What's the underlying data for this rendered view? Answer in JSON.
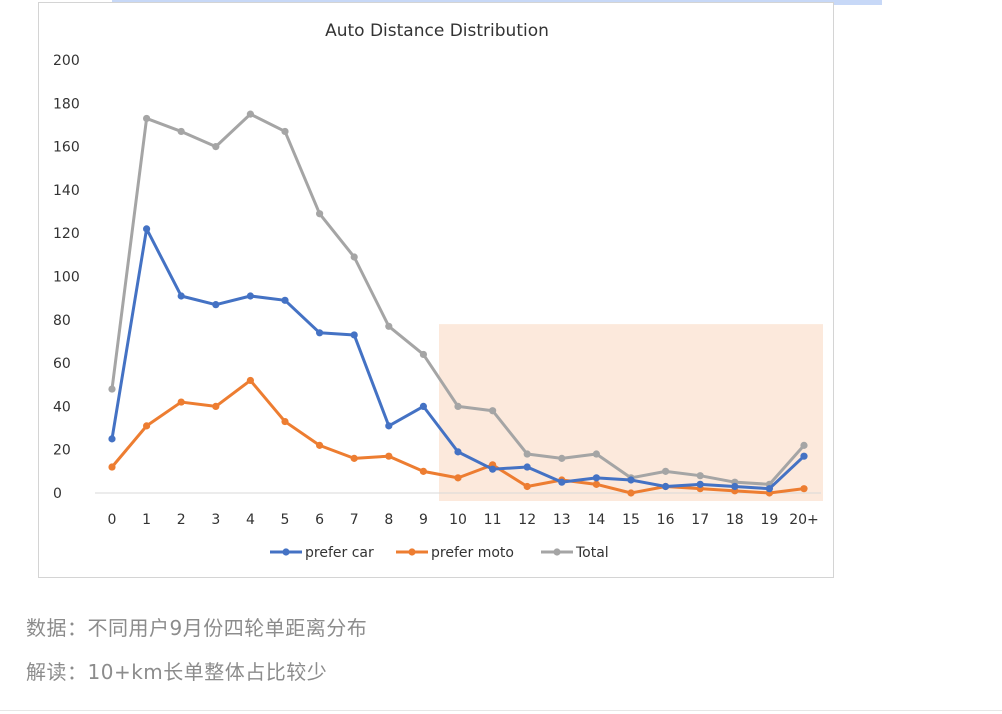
{
  "chart_data": {
    "type": "line",
    "title": "Auto Distance Distribution",
    "categories": [
      "0",
      "1",
      "2",
      "3",
      "4",
      "5",
      "6",
      "7",
      "8",
      "9",
      "10",
      "11",
      "12",
      "13",
      "14",
      "15",
      "16",
      "17",
      "18",
      "19",
      "20+"
    ],
    "yticks": [
      0,
      20,
      40,
      60,
      80,
      100,
      120,
      140,
      160,
      180,
      200
    ],
    "ylim": [
      0,
      200
    ],
    "legend_position": "bottom",
    "grid": false,
    "highlight_region": {
      "from_category": "10",
      "to_category": "20+",
      "y_max": 78,
      "color": "#fbe1d0"
    },
    "series": [
      {
        "name": "prefer car",
        "color": "#4472c4",
        "values": [
          25,
          122,
          91,
          87,
          91,
          89,
          74,
          73,
          31,
          40,
          19,
          11,
          12,
          5,
          7,
          6,
          3,
          4,
          3,
          2,
          17
        ]
      },
      {
        "name": "prefer moto",
        "color": "#ed7d31",
        "values": [
          12,
          31,
          42,
          40,
          52,
          33,
          22,
          16,
          17,
          10,
          7,
          13,
          3,
          6,
          4,
          0,
          3,
          2,
          1,
          0,
          2
        ]
      },
      {
        "name": "Total",
        "color": "#a5a5a5",
        "values": [
          48,
          173,
          167,
          160,
          175,
          167,
          129,
          109,
          77,
          64,
          40,
          38,
          18,
          16,
          18,
          7,
          10,
          8,
          5,
          4,
          22
        ]
      }
    ]
  },
  "captions": {
    "data_source": "数据：不同用户9月份四轮单距离分布",
    "interpretation": "解读：10+km长单整体占比较少"
  }
}
